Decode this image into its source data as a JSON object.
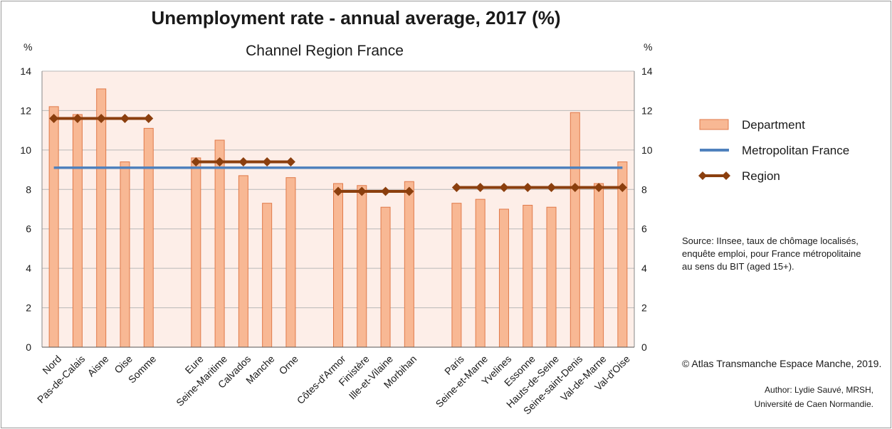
{
  "colors": {
    "bar_fill": "#f8b894",
    "bar_stroke": "#e07a4a",
    "plot_bg": "#fdeee8",
    "metro_line": "#4f81bd",
    "region_line": "#8b3f0e",
    "grid": "#b8b8b8"
  },
  "chart_data": {
    "type": "bar",
    "title": "Unemployment rate - annual average, 2017 (%)",
    "subtitle": "Channel Region France",
    "y_unit_left": "%",
    "y_unit_right": "%",
    "ylim": [
      0,
      14
    ],
    "yticks": [
      0,
      2,
      4,
      6,
      8,
      10,
      12,
      14
    ],
    "grid": true,
    "legend_position": "right",
    "categories": [
      "Nord",
      "Pas-de-Calais",
      "Aisne",
      "Oise",
      "Somme",
      "",
      "Eure",
      "Seine-Maritime",
      "Calvados",
      "Manche",
      "Orne",
      "",
      "Côtes-d'Armor",
      "Finistère",
      "Ille-et-Vilaine",
      "Morbihan",
      "",
      "Paris",
      "Seine-et-Marne",
      "Yvelines",
      "Essonne",
      "Hauts-de-Seine",
      "Seine-saint-Denis",
      "Val-de-Marne",
      "Val-d'Oise"
    ],
    "series": [
      {
        "name": "Department",
        "type": "bar",
        "values": [
          12.2,
          11.8,
          13.1,
          9.4,
          11.1,
          null,
          9.6,
          10.5,
          8.7,
          7.3,
          8.6,
          null,
          8.3,
          8.2,
          7.1,
          8.4,
          null,
          7.3,
          7.5,
          7.0,
          7.2,
          7.1,
          11.9,
          8.3,
          9.4
        ]
      },
      {
        "name": "Metropolitan France",
        "type": "line",
        "values": [
          9.1,
          9.1,
          9.1,
          9.1,
          9.1,
          9.1,
          9.1,
          9.1,
          9.1,
          9.1,
          9.1,
          9.1,
          9.1,
          9.1,
          9.1,
          9.1,
          9.1,
          9.1,
          9.1,
          9.1,
          9.1,
          9.1,
          9.1,
          9.1,
          9.1
        ]
      },
      {
        "name": "Region",
        "type": "line",
        "values": [
          11.6,
          11.6,
          11.6,
          11.6,
          11.6,
          null,
          9.4,
          9.4,
          9.4,
          9.4,
          9.4,
          null,
          7.9,
          7.9,
          7.9,
          7.9,
          null,
          8.1,
          8.1,
          8.1,
          8.1,
          8.1,
          8.1,
          8.1,
          8.1
        ]
      }
    ]
  },
  "legend": {
    "department": "Department",
    "metro": "Metropolitan France",
    "region": "Region"
  },
  "notes": {
    "source_line1": "Source: IInsee, taux de chômage localisés,",
    "source_line2": "enquête emploi, pour France métropolitaine",
    "source_line3": "au sens du BIT (aged 15+).",
    "copyright": "© Atlas Transmanche Espace Manche, 2019.",
    "author_line1": "Author: Lydie Sauvé, MRSH,",
    "author_line2": "Université de Caen Normandie."
  }
}
